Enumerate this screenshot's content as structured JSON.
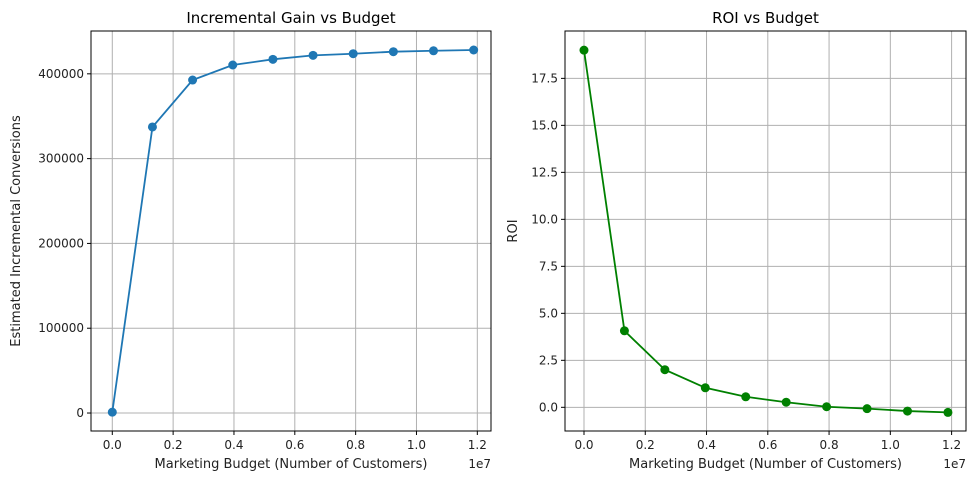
{
  "chart_data": [
    {
      "type": "line",
      "title": "Incremental Gain vs Budget",
      "xlabel": "Marketing Budget (Number of Customers)",
      "ylabel": "Estimated Incremental Conversions",
      "x_offset_label": "1e7",
      "x": [
        0,
        1320000,
        2640000,
        3960000,
        5280000,
        6600000,
        7920000,
        9240000,
        10560000,
        11880000
      ],
      "series": [
        {
          "name": "Incremental Gain",
          "values": [
            1000,
            337300,
            392700,
            410400,
            417100,
            421800,
            423700,
            426100,
            427200,
            428100
          ],
          "color": "#1f77b4"
        }
      ],
      "xlim": [
        -700000,
        12450000
      ],
      "ylim": [
        -21200,
        450500
      ],
      "xticks": [
        0,
        2000000,
        4000000,
        6000000,
        8000000,
        10000000,
        12000000
      ],
      "xtick_labels": [
        "0.0",
        "0.2",
        "0.4",
        "0.6",
        "0.8",
        "1.0",
        "1.2"
      ],
      "yticks": [
        0,
        100000,
        200000,
        300000,
        400000
      ],
      "ytick_labels": [
        "0",
        "100000",
        "200000",
        "300000",
        "400000"
      ],
      "grid": true
    },
    {
      "type": "line",
      "title": "ROI vs Budget",
      "xlabel": "Marketing Budget (Number of Customers)",
      "ylabel": "ROI",
      "x_offset_label": "1e7",
      "x": [
        0,
        1320000,
        2640000,
        3960000,
        5280000,
        6600000,
        7920000,
        9240000,
        10560000,
        11880000
      ],
      "series": [
        {
          "name": "ROI",
          "values": [
            19.0,
            4.07,
            2.0,
            1.04,
            0.56,
            0.27,
            0.03,
            -0.07,
            -0.2,
            -0.27
          ],
          "color": "#008000"
        }
      ],
      "xlim": [
        -620000,
        12470000
      ],
      "ylim": [
        -1.26,
        20.02
      ],
      "xticks": [
        0,
        2000000,
        4000000,
        6000000,
        8000000,
        10000000,
        12000000
      ],
      "xtick_labels": [
        "0.0",
        "0.2",
        "0.4",
        "0.6",
        "0.8",
        "1.0",
        "1.2"
      ],
      "yticks": [
        0,
        2.5,
        5,
        7.5,
        10,
        12.5,
        15,
        17.5
      ],
      "ytick_labels": [
        "0.0",
        "2.5",
        "5.0",
        "7.5",
        "10.0",
        "12.5",
        "15.0",
        "17.5"
      ],
      "grid": true
    }
  ]
}
